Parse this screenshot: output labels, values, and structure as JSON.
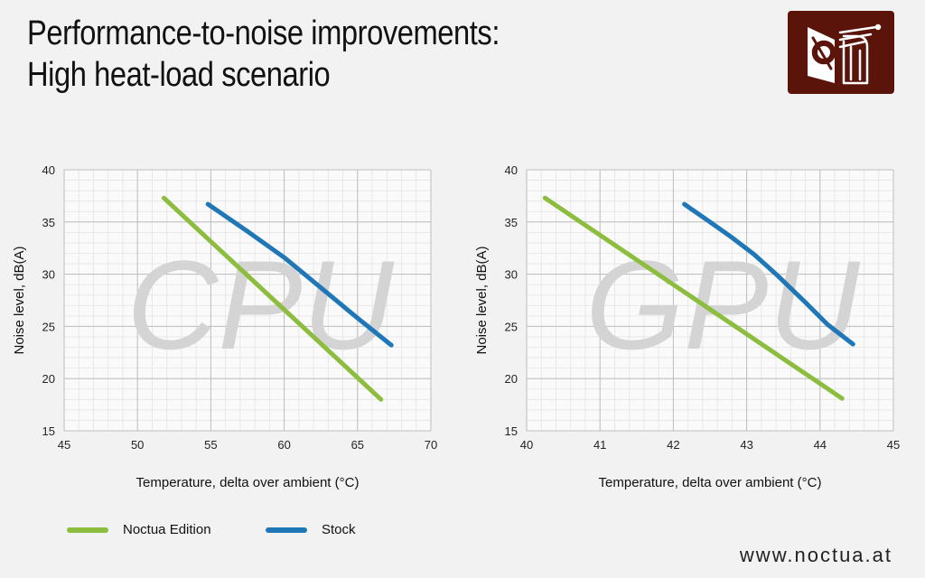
{
  "header": {
    "title_line1": "Performance-to-noise improvements:",
    "title_line2": "High heat-load scenario"
  },
  "footer": {
    "url": "www.noctua.at"
  },
  "legend": [
    {
      "label": "Noctua Edition",
      "color": "#8cbd3f"
    },
    {
      "label": "Stock",
      "color": "#1f77b8"
    }
  ],
  "chart_data": [
    {
      "type": "line",
      "watermark": "CPU",
      "xlabel": "Temperature, delta over ambient (°C)",
      "ylabel": "Noise level, dB(A)",
      "xlim": [
        45,
        70
      ],
      "ylim": [
        15,
        40
      ],
      "xticks": [
        45,
        50,
        55,
        60,
        65,
        70
      ],
      "yticks": [
        15,
        20,
        25,
        30,
        35,
        40
      ],
      "grid": true,
      "series": [
        {
          "name": "Noctua Edition",
          "color": "#8cbd3f",
          "x": [
            51.8,
            66.6
          ],
          "y": [
            37.3,
            18.0
          ]
        },
        {
          "name": "Stock",
          "color": "#1f77b8",
          "x": [
            54.8,
            57.5,
            60.0,
            62.5,
            65.0,
            67.3
          ],
          "y": [
            36.7,
            34.1,
            31.6,
            28.7,
            25.8,
            23.2
          ]
        }
      ]
    },
    {
      "type": "line",
      "watermark": "GPU",
      "xlabel": "Temperature, delta over ambient (°C)",
      "ylabel": "Noise level, dB(A)",
      "xlim": [
        40,
        45
      ],
      "ylim": [
        15,
        40
      ],
      "xticks": [
        40,
        41,
        42,
        43,
        44,
        45
      ],
      "yticks": [
        15,
        20,
        25,
        30,
        35,
        40
      ],
      "grid": true,
      "series": [
        {
          "name": "Noctua Edition",
          "color": "#8cbd3f",
          "x": [
            40.25,
            44.3
          ],
          "y": [
            37.3,
            18.1
          ]
        },
        {
          "name": "Stock",
          "color": "#1f77b8",
          "x": [
            42.15,
            42.5,
            42.8,
            43.1,
            43.4,
            43.8,
            44.1,
            44.45
          ],
          "y": [
            36.7,
            35.0,
            33.5,
            31.9,
            30.0,
            27.3,
            25.2,
            23.3
          ]
        }
      ]
    }
  ]
}
